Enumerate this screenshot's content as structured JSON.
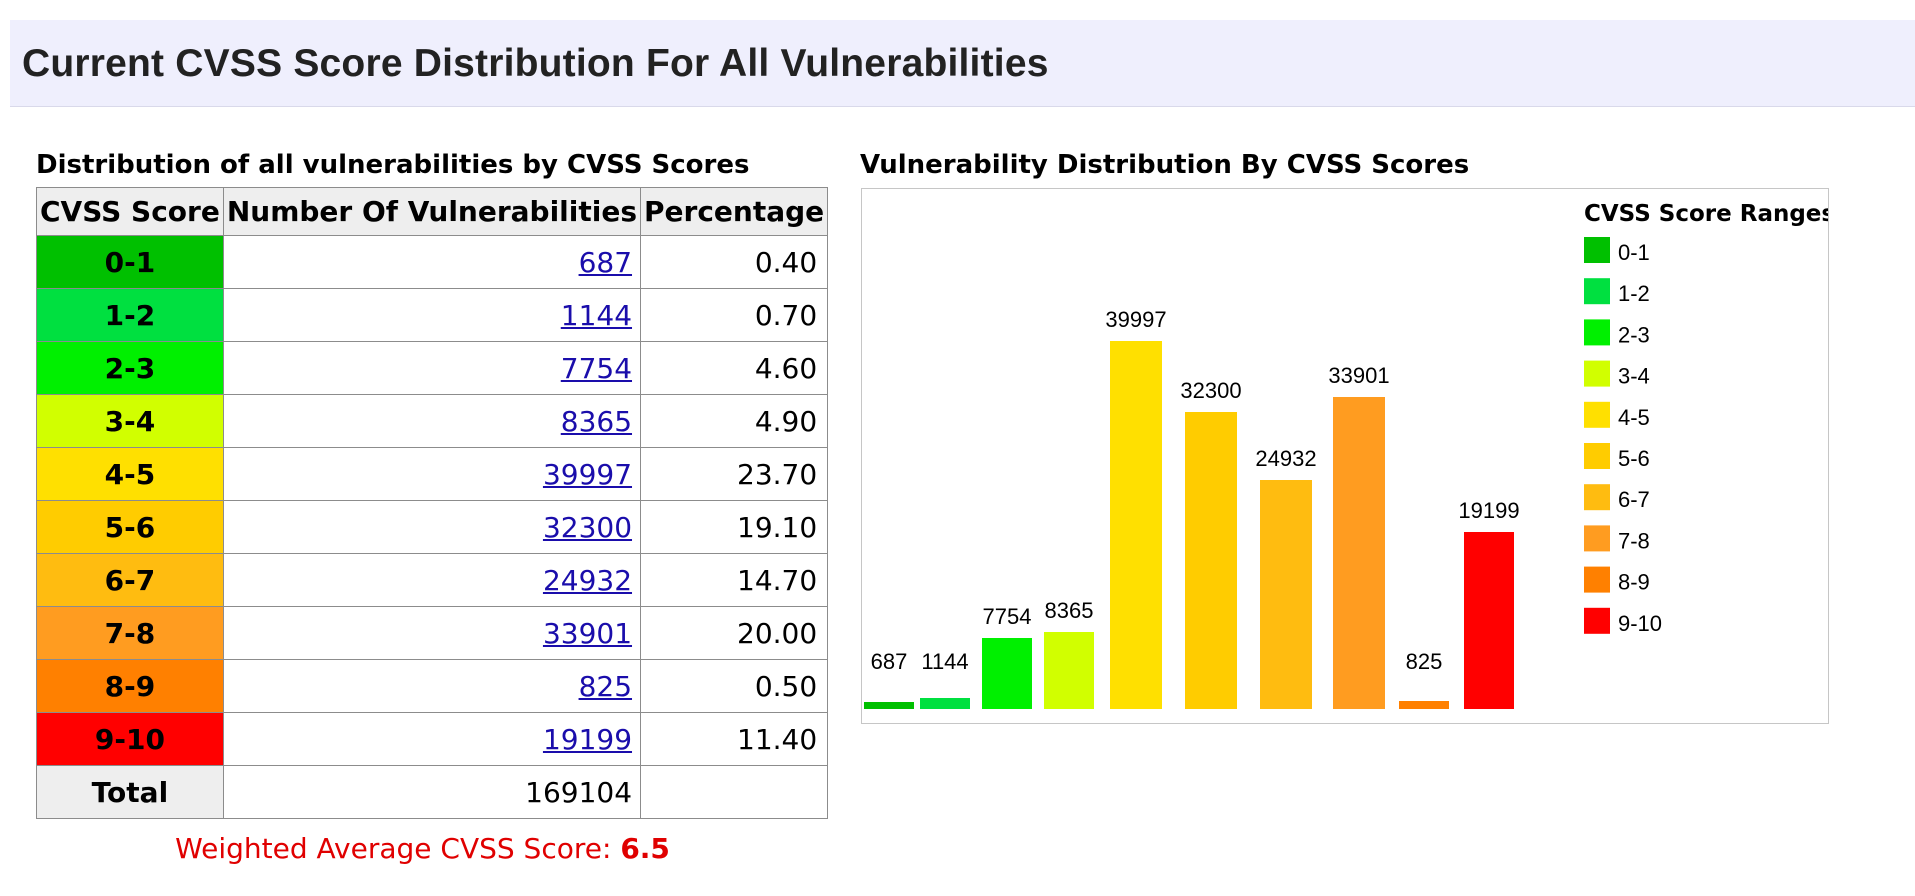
{
  "page": {
    "title": "Current CVSS Score Distribution For All Vulnerabilities"
  },
  "table": {
    "title": "Distribution of all vulnerabilities by CVSS Scores",
    "headers": [
      "CVSS Score",
      "Number Of Vulnerabilities",
      "Percentage"
    ],
    "rows": [
      {
        "score": "0-1",
        "count": "687",
        "percentage": "0.40",
        "color": "#00c000"
      },
      {
        "score": "1-2",
        "count": "1144",
        "percentage": "0.70",
        "color": "#00e040"
      },
      {
        "score": "2-3",
        "count": "7754",
        "percentage": "4.60",
        "color": "#00f000"
      },
      {
        "score": "3-4",
        "count": "8365",
        "percentage": "4.90",
        "color": "#d1ff00"
      },
      {
        "score": "4-5",
        "count": "39997",
        "percentage": "23.70",
        "color": "#ffe000"
      },
      {
        "score": "5-6",
        "count": "32300",
        "percentage": "19.10",
        "color": "#ffcc00"
      },
      {
        "score": "6-7",
        "count": "24932",
        "percentage": "14.70",
        "color": "#ffbc10"
      },
      {
        "score": "7-8",
        "count": "33901",
        "percentage": "20.00",
        "color": "#ff9c20"
      },
      {
        "score": "8-9",
        "count": "825",
        "percentage": "0.50",
        "color": "#ff8000"
      },
      {
        "score": "9-10",
        "count": "19199",
        "percentage": "11.40",
        "color": "#ff0000"
      }
    ],
    "total_label": "Total",
    "total_value": "169104"
  },
  "weighted": {
    "label": "Weighted Average CVSS Score:",
    "value": "6.5"
  },
  "chart_data": {
    "type": "bar",
    "title": "Vulnerability Distribution By CVSS Scores",
    "categories": [
      "0-1",
      "1-2",
      "2-3",
      "3-4",
      "4-5",
      "5-6",
      "6-7",
      "7-8",
      "8-9",
      "9-10"
    ],
    "values": [
      687,
      1144,
      7754,
      8365,
      39997,
      32300,
      24932,
      33901,
      825,
      19199
    ],
    "colors": [
      "#00c000",
      "#00e040",
      "#00f000",
      "#d1ff00",
      "#ffe000",
      "#ffcc00",
      "#ffbc10",
      "#ff9c20",
      "#ff8000",
      "#ff0000"
    ],
    "legend_title": "CVSS Score Ranges",
    "legend_position": "right",
    "grid": false,
    "ylim": [
      0,
      39997
    ]
  }
}
